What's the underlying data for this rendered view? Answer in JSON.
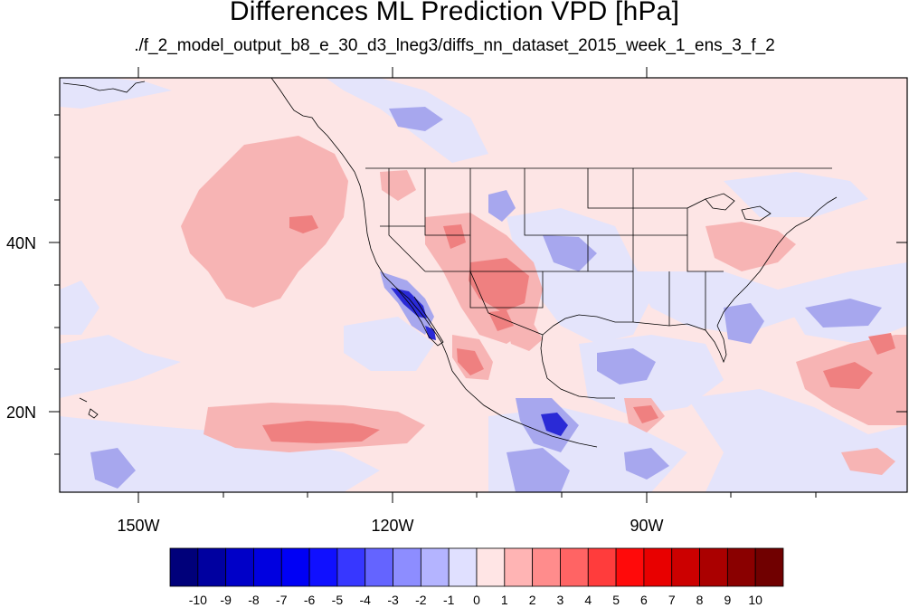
{
  "title": "Differences ML Prediction VPD [hPa]",
  "subtitle": "./f_2_model_output_b8_e_30_d3_lneg3/diffs_nn_dataset_2015_week_1_ens_3_f_2",
  "axes": {
    "lon_range": [
      -160,
      -60
    ],
    "lat_range": [
      10,
      59
    ],
    "lon_ticks": [
      "150W",
      "120W",
      "90W"
    ],
    "lat_ticks": [
      "40N",
      "20N"
    ]
  },
  "colorbar": {
    "labels": [
      "-10",
      "-9",
      "-8",
      "-7",
      "-6",
      "-5",
      "-4",
      "-3",
      "-2",
      "-1",
      "0",
      "1",
      "2",
      "3",
      "4",
      "5",
      "6",
      "7",
      "8",
      "9",
      "10"
    ],
    "colors": [
      "#00007a",
      "#0000a0",
      "#0000c8",
      "#0000e0",
      "#0000f5",
      "#1010ff",
      "#3737ff",
      "#6464ff",
      "#8d8dff",
      "#b4b4ff",
      "#e0e0ff",
      "#ffe5e5",
      "#ffb4b4",
      "#ff8c8c",
      "#ff6464",
      "#ff3c3c",
      "#ff0a0a",
      "#e80000",
      "#cc0000",
      "#aa0000",
      "#8a0000",
      "#700000"
    ]
  },
  "colors": {
    "background_field": "#fde5e5",
    "light_blue": "#e4e4fb",
    "mid_blue": "#a7a7ee",
    "deep_blue": "#2222cc",
    "light_red": "#f7b4b4",
    "mid_red": "#ef8080"
  }
}
